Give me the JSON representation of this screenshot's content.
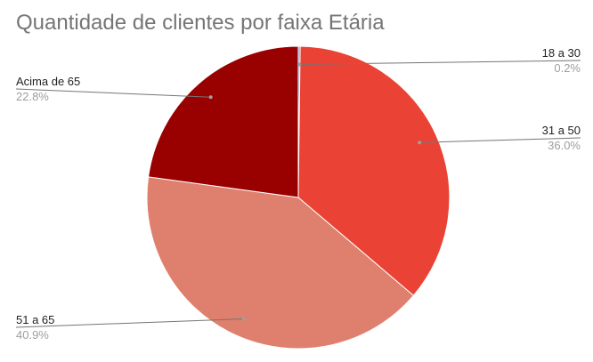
{
  "chart_data": {
    "type": "pie",
    "title": "Quantidade de clientes por faixa Etária",
    "slices": [
      {
        "label": "18 a 30",
        "value": 0.2,
        "percent_label": "0.2%",
        "color": "#5b8fd6"
      },
      {
        "label": "31 a 50",
        "value": 36.0,
        "percent_label": "36.0%",
        "color": "#ea4335"
      },
      {
        "label": "51 a 65",
        "value": 40.9,
        "percent_label": "40.9%",
        "color": "#df7f6d"
      },
      {
        "label": "Acima de 65",
        "value": 22.8,
        "percent_label": "22.8%",
        "color": "#990000"
      }
    ],
    "legend": "labeled-lines"
  }
}
